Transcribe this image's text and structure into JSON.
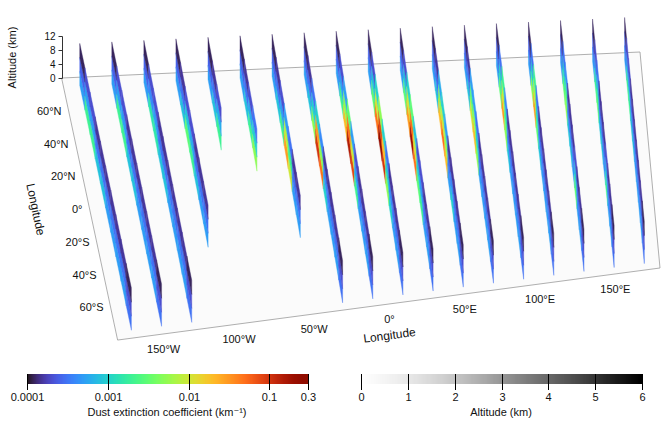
{
  "chart_data": {
    "type": "curtain",
    "xlabel": "Longitude",
    "xlim": [
      -180,
      180
    ],
    "xticks": [
      {
        "value": -150,
        "label": "150°W"
      },
      {
        "value": -100,
        "label": "100°W"
      },
      {
        "value": -50,
        "label": "50°W"
      },
      {
        "value": 0,
        "label": "0°"
      },
      {
        "value": 50,
        "label": "50°E"
      },
      {
        "value": 100,
        "label": "100°E"
      },
      {
        "value": 150,
        "label": "150°E"
      }
    ],
    "ylabel": "Longitude",
    "ylim": [
      -80,
      80
    ],
    "yticks": [
      {
        "value": 60,
        "label": "60°N"
      },
      {
        "value": 40,
        "label": "40°N"
      },
      {
        "value": 20,
        "label": "20°N"
      },
      {
        "value": 0,
        "label": "0°"
      },
      {
        "value": -20,
        "label": "20°S"
      },
      {
        "value": -40,
        "label": "40°S"
      },
      {
        "value": -60,
        "label": "60°S"
      }
    ],
    "altitude_axis": {
      "label": "Altitude (km)",
      "lim": [
        0,
        12
      ],
      "ticks": [
        0,
        4,
        8,
        12
      ]
    },
    "lat_bins": [
      -75,
      -60,
      -45,
      -30,
      -15,
      0,
      15,
      30,
      45,
      60,
      75
    ],
    "altitude_bins": [
      0,
      4,
      8,
      12
    ],
    "curtains": [
      {
        "lon": -170,
        "extinction": [
          [
            0.0003,
            0.0002,
            0.00012
          ],
          [
            0.0005,
            0.0003,
            0.00015
          ],
          [
            0.0005,
            0.0003,
            0.00015
          ],
          [
            0.0005,
            0.0003,
            0.00015
          ],
          [
            0.0005,
            0.0003,
            0.00015
          ],
          [
            0.0008,
            0.0003,
            0.00015
          ],
          [
            0.0008,
            0.0003,
            0.00015
          ],
          [
            0.002,
            0.0005,
            0.0002
          ],
          [
            0.002,
            0.0005,
            0.0002
          ],
          [
            0.0005,
            0.00025,
            0.00012
          ]
        ]
      },
      {
        "lon": -150,
        "extinction": [
          [
            0.0003,
            0.0002,
            0.00012
          ],
          [
            0.0005,
            0.0003,
            0.00015
          ],
          [
            0.0005,
            0.0003,
            0.00015
          ],
          [
            0.0005,
            0.0003,
            0.00015
          ],
          [
            0.0005,
            0.0003,
            0.00015
          ],
          [
            0.0008,
            0.0003,
            0.00015
          ],
          [
            0.0008,
            0.0003,
            0.00015
          ],
          [
            0.002,
            0.0005,
            0.0002
          ],
          [
            0.002,
            0.0005,
            0.0002
          ],
          [
            0.0005,
            0.00025,
            0.00012
          ]
        ]
      },
      {
        "lon": -130,
        "extinction": [
          [
            0.0003,
            0.0002,
            0.00012
          ],
          [
            0.0005,
            0.0003,
            0.00015
          ],
          [
            0.0005,
            0.0003,
            0.00015
          ],
          [
            0.0005,
            0.0003,
            0.00015
          ],
          [
            0.0005,
            0.0003,
            0.00015
          ],
          [
            0.0008,
            0.0003,
            0.00015
          ],
          [
            0.0008,
            0.0003,
            0.00015
          ],
          [
            0.0015,
            0.0005,
            0.0002
          ],
          [
            0.0015,
            0.0004,
            0.0002
          ],
          [
            0.0005,
            0.00025,
            0.00012
          ]
        ]
      },
      {
        "lon": -110,
        "extinction": [
          null,
          null,
          null,
          [
            0.0005,
            0.0003,
            0.00015
          ],
          [
            0.0005,
            0.0003,
            0.00015
          ],
          [
            0.0008,
            0.0003,
            0.00015
          ],
          [
            0.002,
            0.0006,
            0.0002
          ],
          [
            0.003,
            0.0008,
            0.0002
          ],
          [
            0.0008,
            0.0003,
            0.00015
          ],
          [
            0.0005,
            0.00025,
            0.00012
          ]
        ]
      },
      {
        "lon": -90,
        "extinction": [
          null,
          null,
          null,
          null,
          null,
          null,
          null,
          [
            0.002,
            0.0006,
            0.0002
          ],
          [
            0.0008,
            0.0003,
            0.00015
          ],
          [
            0.0005,
            0.00025,
            0.00012
          ]
        ]
      },
      {
        "lon": -70,
        "extinction": [
          null,
          null,
          null,
          null,
          null,
          null,
          [
            0.005,
            0.001,
            0.0003
          ],
          [
            0.002,
            0.0006,
            0.0002
          ],
          [
            0.0008,
            0.0003,
            0.00015
          ],
          [
            0.0005,
            0.00025,
            0.00012
          ]
        ]
      },
      {
        "lon": -50,
        "extinction": [
          null,
          null,
          null,
          [
            0.0005,
            0.0003,
            0.00015
          ],
          [
            0.0005,
            0.0003,
            0.00015
          ],
          [
            0.01,
            0.002,
            0.0003
          ],
          [
            0.03,
            0.008,
            0.0005
          ],
          [
            0.002,
            0.0005,
            0.0002
          ],
          [
            0.0008,
            0.0003,
            0.00015
          ],
          [
            0.0005,
            0.00025,
            0.00012
          ]
        ]
      },
      {
        "lon": -30,
        "extinction": [
          [
            0.0003,
            0.0002,
            0.00012
          ],
          [
            0.0005,
            0.0003,
            0.00015
          ],
          [
            0.0005,
            0.0003,
            0.00015
          ],
          [
            0.0005,
            0.0003,
            0.00015
          ],
          [
            0.001,
            0.0004,
            0.00015
          ],
          [
            0.05,
            0.005,
            0.0004
          ],
          [
            0.1,
            0.03,
            0.001
          ],
          [
            0.005,
            0.001,
            0.0003
          ],
          [
            0.0008,
            0.0003,
            0.00015
          ],
          [
            0.0005,
            0.00025,
            0.00012
          ]
        ]
      },
      {
        "lon": -10,
        "extinction": [
          [
            0.0003,
            0.0002,
            0.00012
          ],
          [
            0.0005,
            0.0003,
            0.00015
          ],
          [
            0.0005,
            0.0003,
            0.00015
          ],
          [
            0.0005,
            0.0003,
            0.00015
          ],
          [
            0.002,
            0.0005,
            0.0002
          ],
          [
            0.08,
            0.01,
            0.0005
          ],
          [
            0.15,
            0.05,
            0.003
          ],
          [
            0.02,
            0.005,
            0.0005
          ],
          [
            0.002,
            0.0005,
            0.0002
          ],
          [
            0.0005,
            0.00025,
            0.00012
          ]
        ]
      },
      {
        "lon": 10,
        "extinction": [
          [
            0.0003,
            0.0002,
            0.00012
          ],
          [
            0.0005,
            0.0003,
            0.00015
          ],
          [
            0.0005,
            0.0003,
            0.00015
          ],
          [
            0.001,
            0.0004,
            0.00015
          ],
          [
            0.005,
            0.001,
            0.0003
          ],
          [
            0.1,
            0.02,
            0.001
          ],
          [
            0.25,
            0.08,
            0.005
          ],
          [
            0.05,
            0.01,
            0.001
          ],
          [
            0.003,
            0.0008,
            0.0002
          ],
          [
            0.0005,
            0.00025,
            0.00012
          ]
        ]
      },
      {
        "lon": 30,
        "extinction": [
          [
            0.0003,
            0.0002,
            0.00012
          ],
          [
            0.0005,
            0.0003,
            0.00015
          ],
          [
            0.0005,
            0.0003,
            0.00015
          ],
          [
            0.002,
            0.0005,
            0.0002
          ],
          [
            0.003,
            0.0008,
            0.0002
          ],
          [
            0.05,
            0.01,
            0.0008
          ],
          [
            0.2,
            0.05,
            0.003
          ],
          [
            0.03,
            0.01,
            0.001
          ],
          [
            0.003,
            0.0008,
            0.0002
          ],
          [
            0.0005,
            0.00025,
            0.00012
          ]
        ]
      },
      {
        "lon": 50,
        "extinction": [
          [
            0.0003,
            0.0002,
            0.00012
          ],
          [
            0.0005,
            0.0003,
            0.00015
          ],
          [
            0.0005,
            0.0003,
            0.00015
          ],
          [
            0.001,
            0.0004,
            0.00015
          ],
          [
            0.0005,
            0.0003,
            0.00015
          ],
          [
            0.02,
            0.005,
            0.0005
          ],
          [
            0.05,
            0.01,
            0.001
          ],
          [
            0.02,
            0.005,
            0.0006
          ],
          [
            0.0008,
            0.0003,
            0.00015
          ],
          [
            0.0005,
            0.00025,
            0.00012
          ]
        ]
      },
      {
        "lon": 70,
        "extinction": [
          [
            0.0003,
            0.0002,
            0.00012
          ],
          [
            0.0005,
            0.0003,
            0.00015
          ],
          [
            0.0005,
            0.0003,
            0.00015
          ],
          [
            0.0005,
            0.0003,
            0.00015
          ],
          [
            0.0005,
            0.0003,
            0.00015
          ],
          [
            0.005,
            0.001,
            0.0003
          ],
          [
            0.02,
            0.005,
            0.0005
          ],
          [
            0.01,
            0.003,
            0.0005
          ],
          [
            0.0008,
            0.0003,
            0.00015
          ],
          [
            0.0005,
            0.00025,
            0.00012
          ]
        ]
      },
      {
        "lon": 90,
        "extinction": [
          [
            0.0003,
            0.0002,
            0.00012
          ],
          [
            0.0005,
            0.0003,
            0.00015
          ],
          [
            0.0005,
            0.0003,
            0.00015
          ],
          [
            0.0005,
            0.0003,
            0.00015
          ],
          [
            0.0005,
            0.0003,
            0.00015
          ],
          [
            0.0008,
            0.0003,
            0.00015
          ],
          [
            0.005,
            0.002,
            0.0004
          ],
          [
            0.03,
            0.01,
            0.002
          ],
          [
            0.003,
            0.001,
            0.0003
          ],
          [
            0.0005,
            0.00025,
            0.00012
          ]
        ]
      },
      {
        "lon": 110,
        "extinction": [
          [
            0.0003,
            0.0002,
            0.00012
          ],
          [
            0.0005,
            0.0003,
            0.00015
          ],
          [
            0.0005,
            0.0003,
            0.00015
          ],
          [
            0.0005,
            0.0003,
            0.00015
          ],
          [
            0.0005,
            0.0003,
            0.00015
          ],
          [
            0.0008,
            0.0003,
            0.00015
          ],
          [
            0.003,
            0.001,
            0.0003
          ],
          [
            0.03,
            0.008,
            0.002
          ],
          [
            0.005,
            0.001,
            0.0003
          ],
          [
            0.0005,
            0.00025,
            0.00012
          ]
        ]
      },
      {
        "lon": 130,
        "extinction": [
          [
            0.0003,
            0.0002,
            0.00012
          ],
          [
            0.0005,
            0.0003,
            0.00015
          ],
          [
            0.0005,
            0.0003,
            0.00015
          ],
          [
            0.003,
            0.0008,
            0.0002
          ],
          [
            0.0005,
            0.0003,
            0.00015
          ],
          [
            0.0008,
            0.0003,
            0.00015
          ],
          [
            0.0008,
            0.0003,
            0.00015
          ],
          [
            0.005,
            0.002,
            0.0004
          ],
          [
            0.003,
            0.001,
            0.0003
          ],
          [
            0.0005,
            0.00025,
            0.00012
          ]
        ]
      },
      {
        "lon": 150,
        "extinction": [
          [
            0.0003,
            0.0002,
            0.00012
          ],
          [
            0.0005,
            0.0003,
            0.00015
          ],
          [
            0.0005,
            0.0003,
            0.00015
          ],
          [
            0.002,
            0.0006,
            0.0002
          ],
          [
            0.0005,
            0.0003,
            0.00015
          ],
          [
            0.0008,
            0.0003,
            0.00015
          ],
          [
            0.0008,
            0.0003,
            0.00015
          ],
          [
            0.003,
            0.001,
            0.0003
          ],
          [
            0.002,
            0.0005,
            0.0002
          ],
          [
            0.0005,
            0.00025,
            0.00012
          ]
        ]
      },
      {
        "lon": 170,
        "extinction": [
          [
            0.0003,
            0.0002,
            0.00012
          ],
          [
            0.0005,
            0.0003,
            0.00015
          ],
          [
            0.0005,
            0.0003,
            0.00015
          ],
          [
            0.0005,
            0.0003,
            0.00015
          ],
          [
            0.0005,
            0.0003,
            0.00015
          ],
          [
            0.0008,
            0.0003,
            0.00015
          ],
          [
            0.0008,
            0.0003,
            0.00015
          ],
          [
            0.002,
            0.0005,
            0.0002
          ],
          [
            0.002,
            0.0005,
            0.0002
          ],
          [
            0.0005,
            0.00025,
            0.00012
          ]
        ]
      }
    ],
    "colorbar": {
      "label": "Dust extinction coefficient (km⁻¹)",
      "range": [
        0.0001,
        0.3
      ],
      "ticks": [
        0.0001,
        0.001,
        0.01,
        0.1,
        0.3
      ],
      "log": true,
      "color": "turbo"
    },
    "surface_colorbar": {
      "label": "Altitude (km)",
      "range": [
        0,
        6
      ],
      "ticks": [
        0,
        1,
        2,
        3,
        4,
        5,
        6
      ],
      "color": "greys"
    }
  }
}
